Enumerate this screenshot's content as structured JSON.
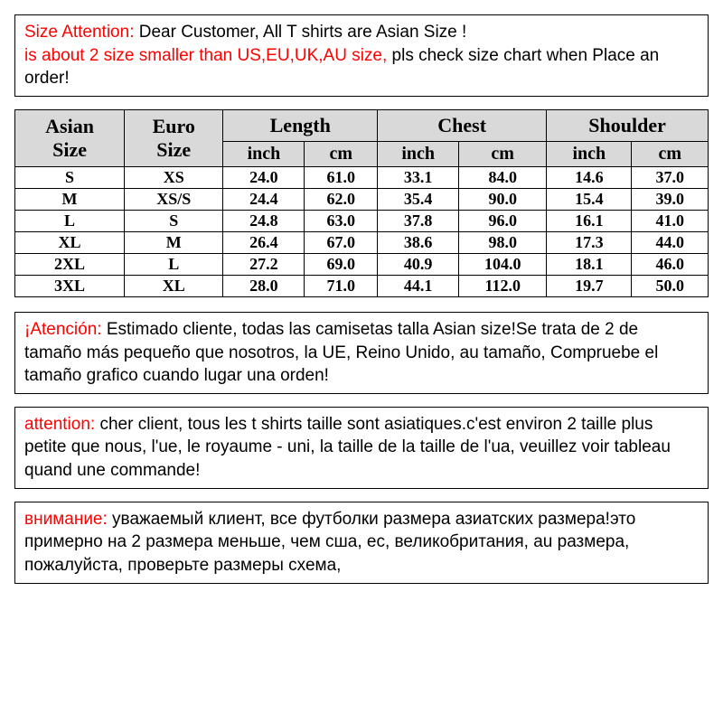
{
  "notices": {
    "en": {
      "lead": "Size Attention:",
      "body1": " Dear Customer, All T shirts are  Asian Size ! ",
      "lead2": "is about 2 size smaller than US,EU,UK,AU size,",
      "body2": " pls check size chart when Place an order!"
    },
    "es": {
      "lead": "¡Atención:",
      "body": " Estimado cliente, todas las camisetas talla Asian size!Se trata de 2 de tamaño más pequeño que nosotros, la UE, Reino Unido, au tamaño, Compruebe el tamaño grafico cuando lugar una orden!"
    },
    "fr": {
      "lead": "attention:",
      "body": " cher client, tous les t shirts taille sont asiatiques.c'est environ 2 taille plus petite que nous, l'ue, le royaume - uni, la taille de la taille de l'ua, veuillez voir tableau quand une commande!"
    },
    "ru": {
      "lead": "внимание:",
      "body": " уважаемый клиент, все футболки размера азиатских размера!это примерно на 2 размера меньше, чем сша, ес, великобритания, au размера, пожалуйста, проверьте размеры схема,"
    }
  },
  "table": {
    "headers": {
      "asian_size": "Asian Size",
      "euro_size": "Euro Size",
      "length": "Length",
      "chest": "Chest",
      "shoulder": "Shoulder",
      "inch": "inch",
      "cm": "cm"
    },
    "rows": [
      {
        "asian": "S",
        "euro": "XS",
        "len_in": "24.0",
        "len_cm": "61.0",
        "ch_in": "33.1",
        "ch_cm": "84.0",
        "sh_in": "14.6",
        "sh_cm": "37.0"
      },
      {
        "asian": "M",
        "euro": "XS/S",
        "len_in": "24.4",
        "len_cm": "62.0",
        "ch_in": "35.4",
        "ch_cm": "90.0",
        "sh_in": "15.4",
        "sh_cm": "39.0"
      },
      {
        "asian": "L",
        "euro": "S",
        "len_in": "24.8",
        "len_cm": "63.0",
        "ch_in": "37.8",
        "ch_cm": "96.0",
        "sh_in": "16.1",
        "sh_cm": "41.0"
      },
      {
        "asian": "XL",
        "euro": "M",
        "len_in": "26.4",
        "len_cm": "67.0",
        "ch_in": "38.6",
        "ch_cm": "98.0",
        "sh_in": "17.3",
        "sh_cm": "44.0"
      },
      {
        "asian": "2XL",
        "euro": "L",
        "len_in": "27.2",
        "len_cm": "69.0",
        "ch_in": "40.9",
        "ch_cm": "104.0",
        "sh_in": "18.1",
        "sh_cm": "46.0"
      },
      {
        "asian": "3XL",
        "euro": "XL",
        "len_in": "28.0",
        "len_cm": "71.0",
        "ch_in": "44.1",
        "ch_cm": "112.0",
        "sh_in": "19.7",
        "sh_cm": "50.0"
      }
    ]
  },
  "styles": {
    "lead_color": "#ff0000",
    "text_color": "#000000",
    "border_color": "#000000",
    "header_bg": "#d9d9d9",
    "body_bg": "#ffffff"
  }
}
